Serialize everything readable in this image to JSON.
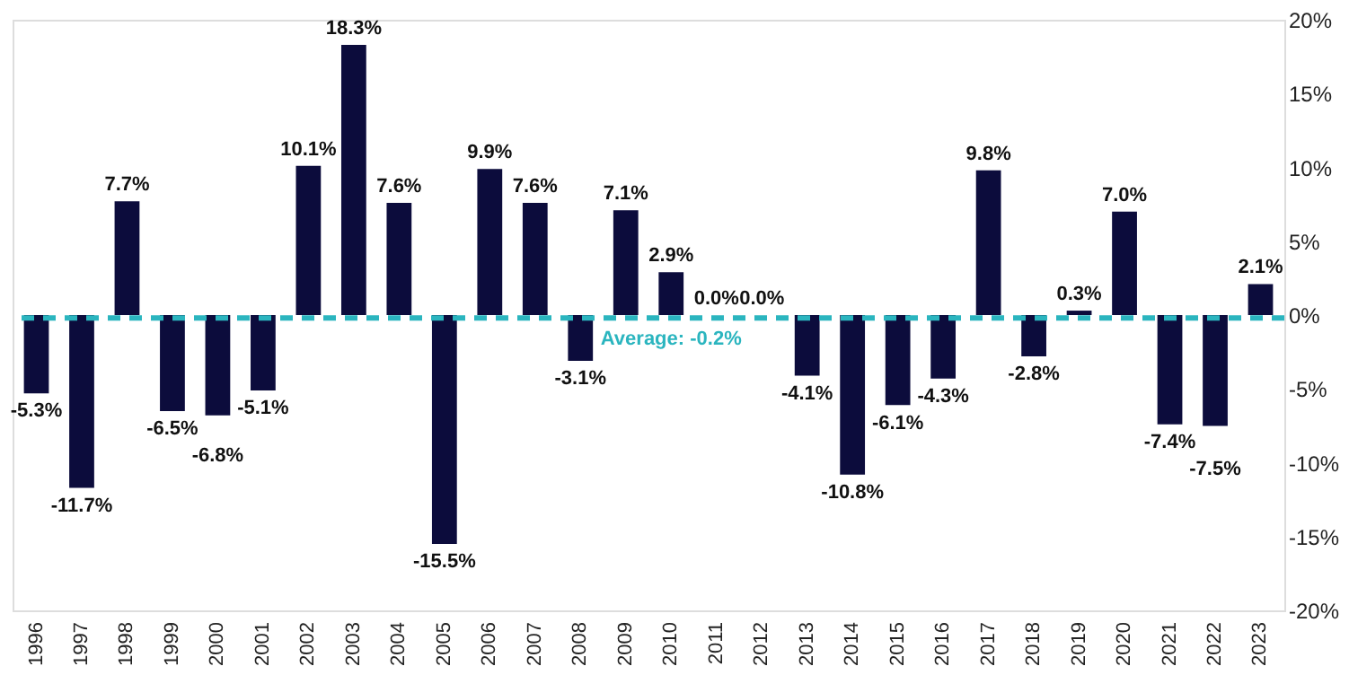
{
  "chart_data": {
    "type": "bar",
    "categories": [
      "1996",
      "1997",
      "1998",
      "1999",
      "2000",
      "2001",
      "2002",
      "2003",
      "2004",
      "2005",
      "2006",
      "2007",
      "2008",
      "2009",
      "2010",
      "2011",
      "2012",
      "2013",
      "2014",
      "2015",
      "2016",
      "2017",
      "2018",
      "2019",
      "2020",
      "2021",
      "2022",
      "2023"
    ],
    "values": [
      -5.3,
      -11.7,
      7.7,
      -6.5,
      -6.8,
      -5.1,
      10.1,
      18.3,
      7.6,
      -15.5,
      9.9,
      7.6,
      -3.1,
      7.1,
      2.9,
      0.0,
      0.0,
      -4.1,
      -10.8,
      -6.1,
      -4.3,
      9.8,
      -2.8,
      0.3,
      7.0,
      -7.4,
      -7.5,
      2.1
    ],
    "value_labels": [
      "-5.3%",
      "-11.7%",
      "7.7%",
      "-6.5%",
      "-6.8%",
      "-5.1%",
      "10.1%",
      "18.3%",
      "7.6%",
      "-15.5%",
      "9.9%",
      "7.6%",
      "-3.1%",
      "7.1%",
      "2.9%",
      "0.0%",
      "0.0%",
      "-4.1%",
      "-10.8%",
      "-6.1%",
      "-4.3%",
      "9.8%",
      "-2.8%",
      "0.3%",
      "7.0%",
      "-7.4%",
      "-7.5%",
      "2.1%"
    ],
    "color": "#0c0c3c",
    "ylim": [
      -20,
      20
    ],
    "yticks": [
      {
        "value": -20,
        "label": "-20%"
      },
      {
        "value": -15,
        "label": "-15%"
      },
      {
        "value": -10,
        "label": "-10%"
      },
      {
        "value": -5,
        "label": "-5%"
      },
      {
        "value": 0,
        "label": "0%"
      },
      {
        "value": 5,
        "label": "5%"
      },
      {
        "value": 10,
        "label": "10%"
      },
      {
        "value": 15,
        "label": "15%"
      },
      {
        "value": 20,
        "label": "20%"
      }
    ],
    "ref_lines": [
      {
        "axis": "y",
        "value": -0.2,
        "label": "Average: -0.2%",
        "color": "#2bb5bf",
        "line_style": "dashed"
      }
    ],
    "grid": false,
    "legend": false
  }
}
